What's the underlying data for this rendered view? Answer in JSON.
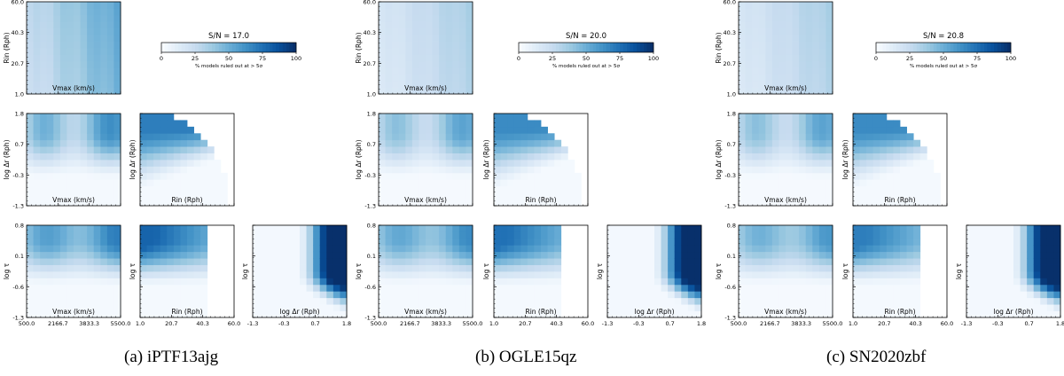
{
  "chart_data": [
    {
      "type": "heatmap",
      "caption": "(a) iPTF13ajg",
      "sn_label": "S/N = 17.0",
      "colorbar": {
        "ticks": [
          "0",
          "25",
          "50",
          "75",
          "100"
        ],
        "label": "% models ruled out at > 5σ",
        "range": [
          0,
          100
        ]
      },
      "params": {
        "vmax": {
          "label": "Vmax (km/s)",
          "range": [
            500,
            5500
          ],
          "ticks": [
            "500.0",
            "2166.7",
            "3833.3",
            "5500.0"
          ]
        },
        "rin": {
          "label": "Rin (Rph)",
          "range": [
            1,
            60
          ],
          "ticks": [
            "1.0",
            "20.7",
            "40.3",
            "60.0"
          ]
        },
        "logdr": {
          "label": "log Δr (Rph)",
          "range": [
            -1.3,
            1.8
          ],
          "ticks": [
            "-1.3",
            "-0.3",
            "0.7",
            "1.8"
          ]
        },
        "logtau": {
          "label": "log τ",
          "range": [
            -1.3,
            0.8
          ],
          "ticks": [
            "-1.3",
            "-0.6",
            "0.1",
            "0.8"
          ]
        }
      },
      "panels": [
        {
          "id": "rin_vs_vmax",
          "x": "vmax",
          "y": "rin",
          "peak_percent": 55
        },
        {
          "id": "logdr_vs_vmax",
          "x": "vmax",
          "y": "logdr",
          "peak_percent": 70
        },
        {
          "id": "logdr_vs_rin",
          "x": "rin",
          "y": "logdr",
          "peak_percent": 70
        },
        {
          "id": "logtau_vs_vmax",
          "x": "vmax",
          "y": "logtau",
          "peak_percent": 70
        },
        {
          "id": "logtau_vs_rin",
          "x": "rin",
          "y": "logtau",
          "peak_percent": 80
        },
        {
          "id": "logtau_vs_logdr",
          "x": "logdr",
          "y": "logtau",
          "peak_percent": 100
        }
      ]
    },
    {
      "type": "heatmap",
      "caption": "(b) OGLE15qz",
      "sn_label": "S/N = 20.0",
      "colorbar": {
        "ticks": [
          "0",
          "25",
          "50",
          "75",
          "100"
        ],
        "label": "% models ruled out at > 5σ",
        "range": [
          0,
          100
        ]
      },
      "params": {
        "vmax": {
          "label": "Vmax (km/s)",
          "range": [
            500,
            5500
          ],
          "ticks": [
            "500.0",
            "2166.7",
            "3833.3",
            "5500.0"
          ]
        },
        "rin": {
          "label": "Rin (Rph)",
          "range": [
            1,
            60
          ],
          "ticks": [
            "1.0",
            "20.7",
            "40.3",
            "60.0"
          ]
        },
        "logdr": {
          "label": "log Δr (Rph)",
          "range": [
            -1.3,
            1.8
          ],
          "ticks": [
            "-1.3",
            "-0.3",
            "0.7",
            "1.8"
          ]
        },
        "logtau": {
          "label": "log τ",
          "range": [
            -1.3,
            0.8
          ],
          "ticks": [
            "-1.3",
            "-0.6",
            "0.1",
            "0.8"
          ]
        }
      },
      "panels": [
        {
          "id": "rin_vs_vmax",
          "x": "vmax",
          "y": "rin",
          "peak_percent": 35
        },
        {
          "id": "logdr_vs_vmax",
          "x": "vmax",
          "y": "logdr",
          "peak_percent": 60
        },
        {
          "id": "logdr_vs_rin",
          "x": "rin",
          "y": "logdr",
          "peak_percent": 65
        },
        {
          "id": "logtau_vs_vmax",
          "x": "vmax",
          "y": "logtau",
          "peak_percent": 65
        },
        {
          "id": "logtau_vs_rin",
          "x": "rin",
          "y": "logtau",
          "peak_percent": 75
        },
        {
          "id": "logtau_vs_logdr",
          "x": "logdr",
          "y": "logtau",
          "peak_percent": 100
        }
      ]
    },
    {
      "type": "heatmap",
      "caption": "(c) SN2020zbf",
      "sn_label": "S/N = 20.8",
      "colorbar": {
        "ticks": [
          "0",
          "25",
          "50",
          "75",
          "100"
        ],
        "label": "% models ruled out at > 5σ",
        "range": [
          0,
          100
        ]
      },
      "params": {
        "vmax": {
          "label": "Vmax (km/s)",
          "range": [
            500,
            5500
          ],
          "ticks": [
            "500.0",
            "2166.7",
            "3833.3",
            "5500.0"
          ]
        },
        "rin": {
          "label": "Rin (Rph)",
          "range": [
            1,
            60
          ],
          "ticks": [
            "1.0",
            "20.7",
            "40.3",
            "60.0"
          ]
        },
        "logdr": {
          "label": "log Δr (Rph)",
          "range": [
            -1.3,
            1.8
          ],
          "ticks": [
            "-1.3",
            "-0.3",
            "0.7",
            "1.8"
          ]
        },
        "logtau": {
          "label": "log τ",
          "range": [
            -1.3,
            0.8
          ],
          "ticks": [
            "-1.3",
            "-0.6",
            "0.1",
            "0.8"
          ]
        }
      },
      "panels": [
        {
          "id": "rin_vs_vmax",
          "x": "vmax",
          "y": "rin",
          "peak_percent": 35
        },
        {
          "id": "logdr_vs_vmax",
          "x": "vmax",
          "y": "logdr",
          "peak_percent": 60
        },
        {
          "id": "logdr_vs_rin",
          "x": "rin",
          "y": "logdr",
          "peak_percent": 65
        },
        {
          "id": "logtau_vs_vmax",
          "x": "vmax",
          "y": "logtau",
          "peak_percent": 60
        },
        {
          "id": "logtau_vs_rin",
          "x": "rin",
          "y": "logtau",
          "peak_percent": 70
        },
        {
          "id": "logtau_vs_logdr",
          "x": "logdr",
          "y": "logtau",
          "peak_percent": 100
        }
      ]
    }
  ]
}
